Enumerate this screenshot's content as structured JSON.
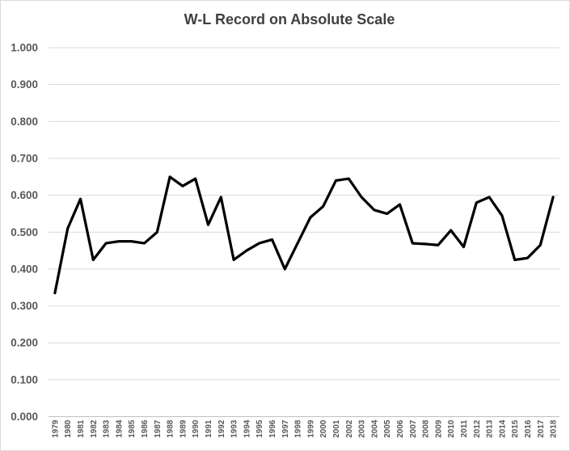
{
  "chart_data": {
    "type": "line",
    "title": "W-L Record on Absolute Scale",
    "xlabel": "",
    "ylabel": "",
    "x": [
      "1979",
      "1980",
      "1981",
      "1982",
      "1983",
      "1984",
      "1985",
      "1986",
      "1987",
      "1988",
      "1989",
      "1990",
      "1991",
      "1992",
      "1993",
      "1994",
      "1995",
      "1996",
      "1997",
      "1998",
      "1999",
      "2000",
      "2001",
      "2002",
      "2003",
      "2004",
      "2005",
      "2006",
      "2007",
      "2008",
      "2009",
      "2010",
      "2011",
      "2012",
      "2013",
      "2014",
      "2015",
      "2016",
      "2017",
      "2018"
    ],
    "series": [
      {
        "name": "W-L Record",
        "values": [
          0.335,
          0.51,
          0.59,
          0.425,
          0.47,
          0.475,
          0.475,
          0.47,
          0.5,
          0.65,
          0.625,
          0.645,
          0.52,
          0.595,
          0.425,
          0.45,
          0.47,
          0.48,
          0.4,
          0.47,
          0.54,
          0.57,
          0.64,
          0.645,
          0.595,
          0.56,
          0.55,
          0.575,
          0.47,
          0.468,
          0.465,
          0.505,
          0.46,
          0.58,
          0.595,
          0.545,
          0.425,
          0.43,
          0.465,
          0.595
        ]
      }
    ],
    "ylim": [
      0.0,
      1.0
    ],
    "ytick_step": 0.1,
    "yticks": [
      "1.000",
      "0.900",
      "0.800",
      "0.700",
      "0.600",
      "0.500",
      "0.400",
      "0.300",
      "0.200",
      "0.100",
      "0.000"
    ],
    "grid": "horizontal",
    "legend": "none",
    "colors": {
      "line": "#000000",
      "gridline": "#d9d9d9",
      "axis_line": "#bfbfbf",
      "tick_label": "#595959",
      "title": "#404040",
      "background": "#ffffff",
      "frame_border": "#d9d9d9"
    }
  }
}
